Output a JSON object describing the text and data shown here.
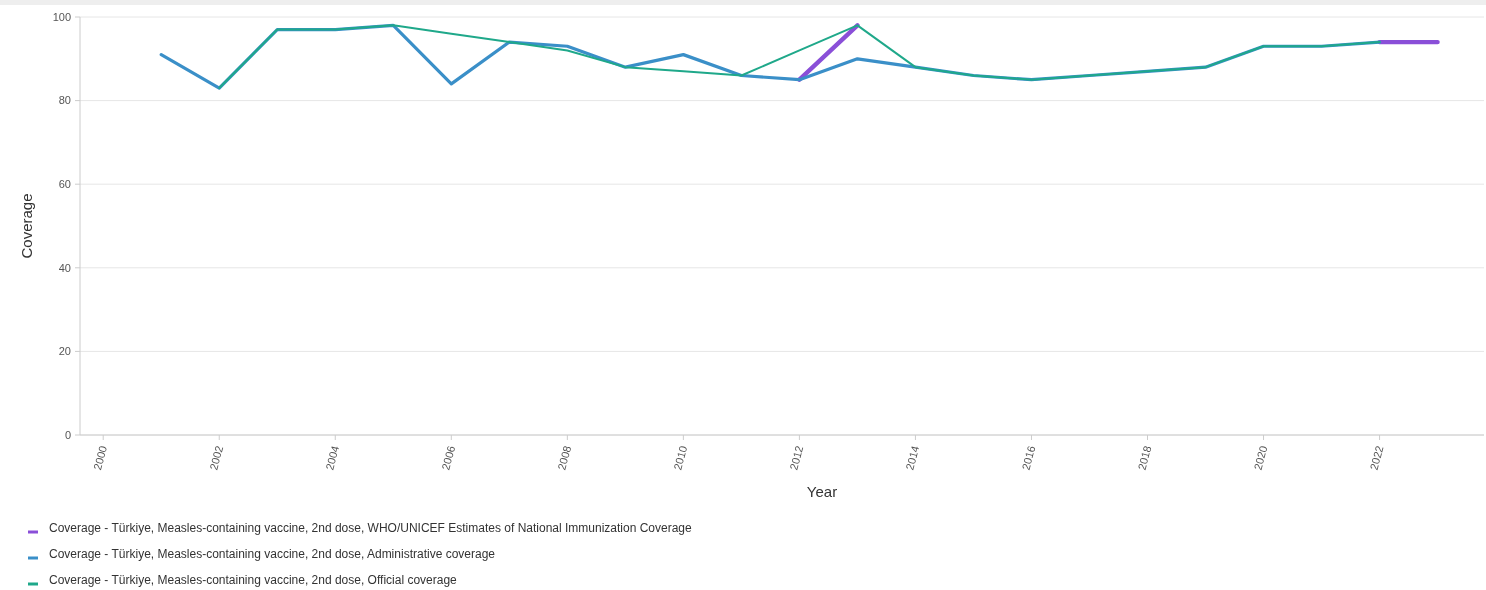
{
  "chart_data": {
    "type": "line",
    "xlabel": "Year",
    "ylabel": "Coverage",
    "x": [
      2001,
      2002,
      2003,
      2004,
      2005,
      2006,
      2007,
      2008,
      2009,
      2010,
      2011,
      2012,
      2013,
      2014,
      2015,
      2016,
      2017,
      2018,
      2019,
      2020,
      2021,
      2022,
      2023
    ],
    "series": [
      {
        "name": "Coverage - Türkiye, Measles-containing vaccine, 2nd dose, WHO/UNICEF Estimates of National Immunization Coverage",
        "color": "#8a4fd8",
        "values": [
          null,
          null,
          null,
          null,
          null,
          null,
          null,
          null,
          null,
          null,
          null,
          85,
          98,
          null,
          null,
          null,
          null,
          null,
          null,
          null,
          null,
          94,
          94
        ]
      },
      {
        "name": "Coverage - Türkiye, Measles-containing vaccine, 2nd dose, Administrative coverage",
        "color": "#3a8fc8",
        "values": [
          91,
          83,
          97,
          97,
          98,
          84,
          94,
          93,
          88,
          91,
          86,
          85,
          90,
          88,
          86,
          85,
          86,
          87,
          88,
          93,
          93,
          94,
          null
        ]
      },
      {
        "name": "Coverage - Türkiye, Measles-containing vaccine, 2nd dose, Official coverage",
        "color": "#1fa88a",
        "values": [
          null,
          83,
          97,
          97,
          98,
          96,
          94,
          92,
          88,
          87,
          86,
          92,
          98,
          88,
          86,
          85,
          86,
          87,
          88,
          93,
          93,
          94,
          null
        ]
      }
    ],
    "xlim": [
      1999.6,
      2023.8
    ],
    "xticks": [
      2000,
      2002,
      2004,
      2006,
      2008,
      2010,
      2012,
      2014,
      2016,
      2018,
      2020,
      2022
    ],
    "ylim": [
      0,
      100
    ],
    "yticks": [
      0,
      20,
      40,
      60,
      80,
      100
    ],
    "grid": "y",
    "legend": "bottom left",
    "marker": "none",
    "line_style": "solid"
  }
}
